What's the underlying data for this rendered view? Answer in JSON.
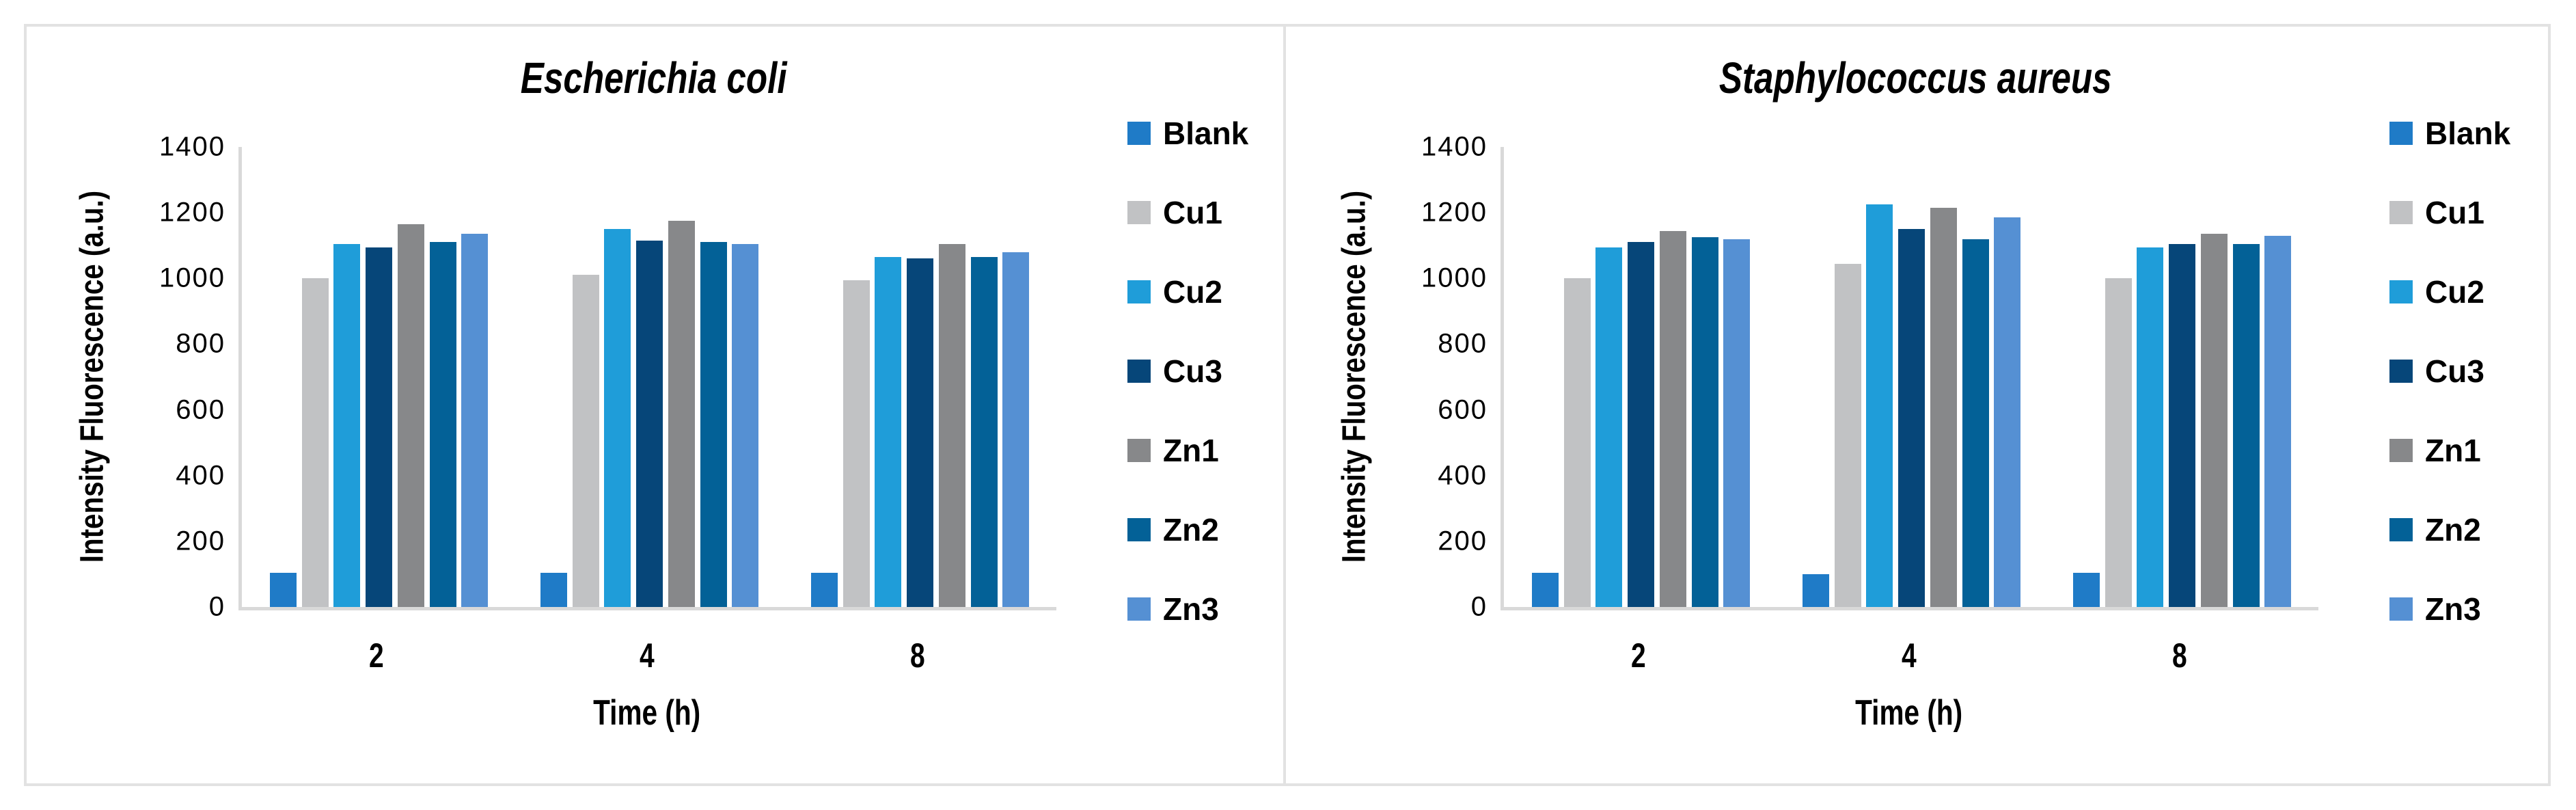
{
  "figure": {
    "background": "#FFFFFF",
    "border_color": "#E2E2E2",
    "axis_line_color": "#D9D9D9",
    "text_color": "#000000"
  },
  "chart_data": [
    {
      "type": "bar",
      "title": "Escherichia coli",
      "xlabel": "Time (h)",
      "ylabel": "Intensity Fluorescence (a.u.)",
      "ylim": [
        0,
        1400
      ],
      "ytick_step": 200,
      "yticks": [
        "0",
        "200",
        "400",
        "600",
        "800",
        "1000",
        "1200",
        "1400"
      ],
      "grid": false,
      "legend_position": "right",
      "categories": [
        "2",
        "4",
        "8"
      ],
      "series": [
        {
          "name": "Blank",
          "color": "#1F7BC7",
          "values": [
            105,
            105,
            105
          ]
        },
        {
          "name": "Cu1",
          "color": "#C1C2C4",
          "values": [
            1000,
            1010,
            995
          ]
        },
        {
          "name": "Cu2",
          "color": "#1F9DD9",
          "values": [
            1105,
            1150,
            1065
          ]
        },
        {
          "name": "Cu3",
          "color": "#064679",
          "values": [
            1095,
            1115,
            1060
          ]
        },
        {
          "name": "Zn1",
          "color": "#87888A",
          "values": [
            1165,
            1175,
            1105
          ]
        },
        {
          "name": "Zn2",
          "color": "#036197",
          "values": [
            1110,
            1110,
            1065
          ]
        },
        {
          "name": "Zn3",
          "color": "#5590D3",
          "values": [
            1135,
            1105,
            1080
          ]
        }
      ]
    },
    {
      "type": "bar",
      "title": "Staphylococcus aureus",
      "xlabel": "Time (h)",
      "ylabel": "Intensity Fluorescence (a.u.)",
      "ylim": [
        0,
        1400
      ],
      "ytick_step": 200,
      "yticks": [
        "0",
        "200",
        "400",
        "600",
        "800",
        "1000",
        "1200",
        "1400"
      ],
      "grid": false,
      "legend_position": "right",
      "categories": [
        "2",
        "4",
        "8"
      ],
      "series": [
        {
          "name": "Blank",
          "color": "#1F7BC7",
          "values": [
            105,
            100,
            105
          ]
        },
        {
          "name": "Cu1",
          "color": "#C1C2C4",
          "values": [
            1000,
            1045,
            1000
          ]
        },
        {
          "name": "Cu2",
          "color": "#1F9DD9",
          "values": [
            1095,
            1225,
            1095
          ]
        },
        {
          "name": "Cu3",
          "color": "#064679",
          "values": [
            1110,
            1150,
            1105
          ]
        },
        {
          "name": "Zn1",
          "color": "#87888A",
          "values": [
            1145,
            1215,
            1135
          ]
        },
        {
          "name": "Zn2",
          "color": "#036197",
          "values": [
            1125,
            1120,
            1105
          ]
        },
        {
          "name": "Zn3",
          "color": "#5590D3",
          "values": [
            1120,
            1185,
            1130
          ]
        }
      ]
    }
  ]
}
